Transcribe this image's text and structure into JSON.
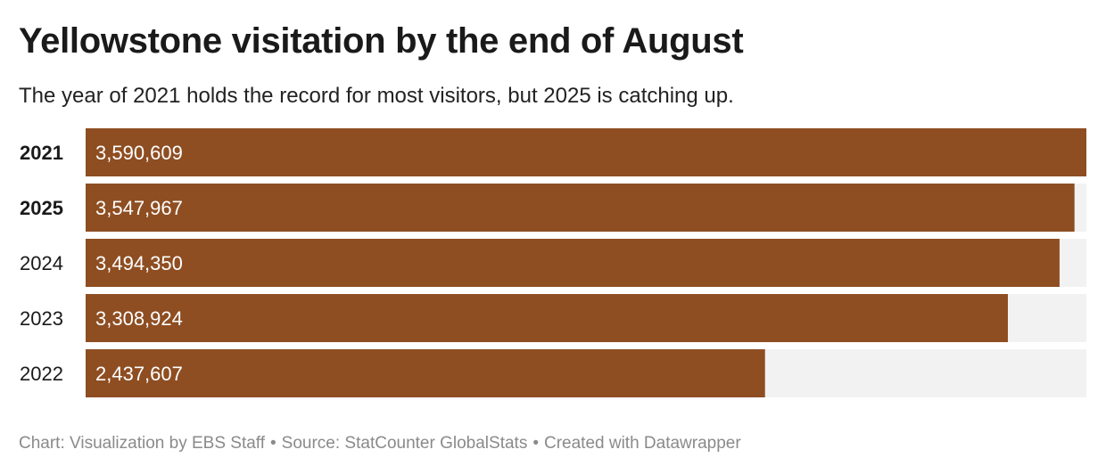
{
  "title": "Yellowstone visitation by the end of August",
  "subtitle": "The year of 2021 holds the record for most visitors, but 2025 is catching up.",
  "footer": {
    "chart_credit": "Chart: Visualization by EBS Staff",
    "source": "Source: StatCounter GlobalStats",
    "created_with": "Created with Datawrapper",
    "separator": "•"
  },
  "colors": {
    "bar": "#8e4e22",
    "track": "#f2f2f2",
    "bar_label": "#ffffff",
    "category_label": "#1a1a1a"
  },
  "chart_data": {
    "type": "bar",
    "orientation": "horizontal",
    "categories": [
      "2021",
      "2025",
      "2024",
      "2023",
      "2022"
    ],
    "values": [
      3590609,
      3547967,
      3494350,
      3308924,
      2437607
    ],
    "value_labels": [
      "3,590,609",
      "3,547,967",
      "3,494,350",
      "3,308,924",
      "2,437,607"
    ],
    "bold_categories": [
      "2021",
      "2025"
    ],
    "xlim": [
      0,
      3590609
    ],
    "title": "Yellowstone visitation by the end of August",
    "subtitle": "The year of 2021 holds the record for most visitors, but 2025 is catching up.",
    "grid": false
  }
}
